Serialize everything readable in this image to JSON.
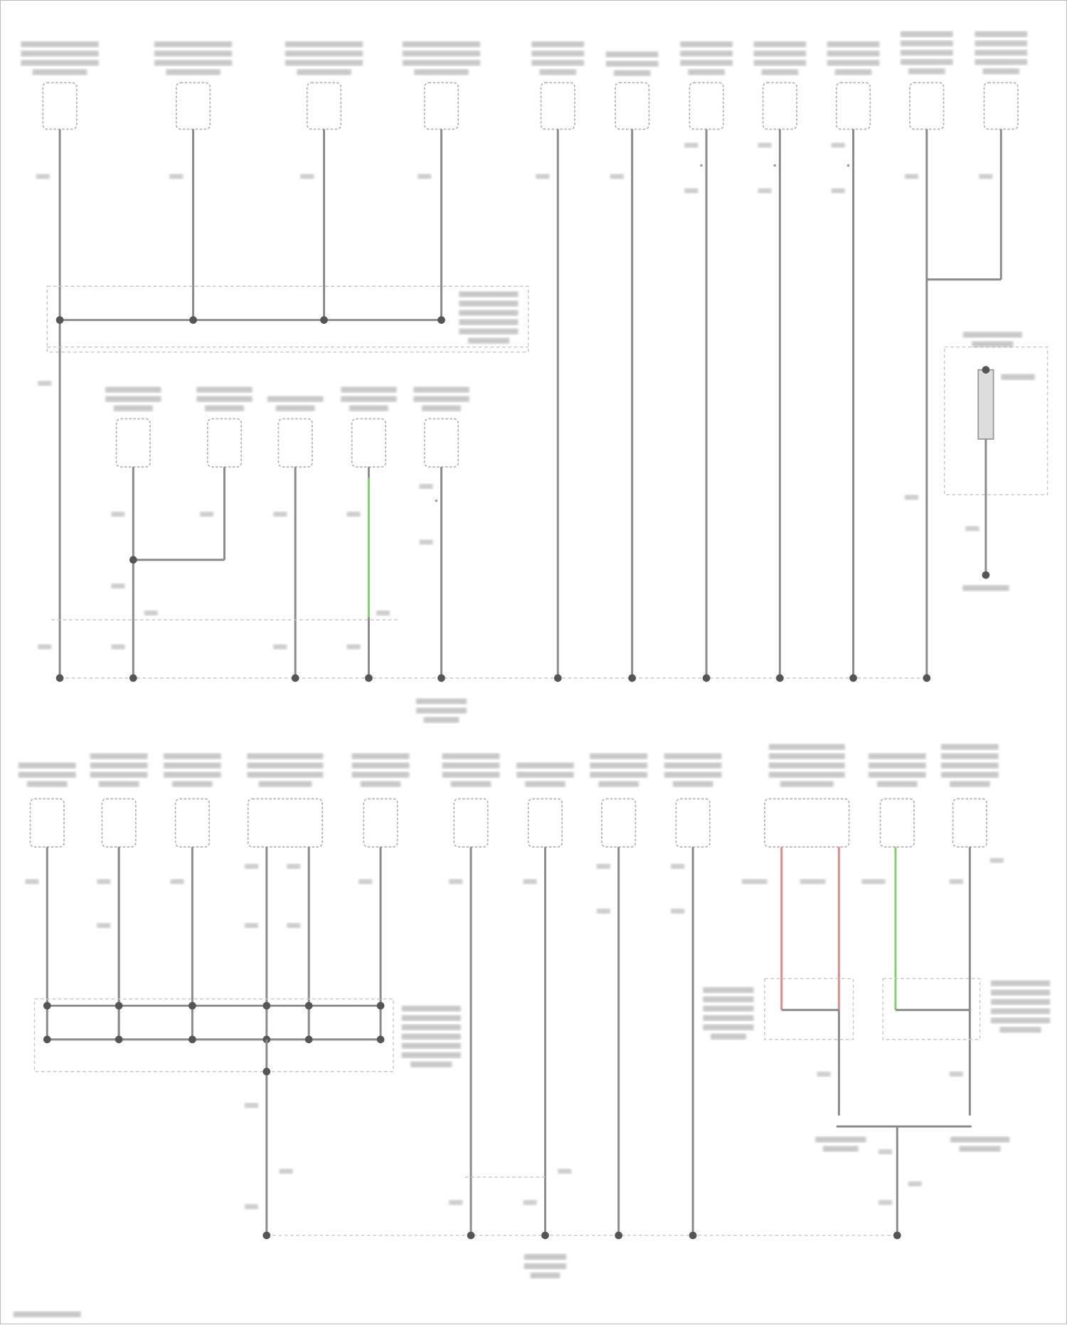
{
  "diagram": {
    "type": "wiring-diagram-ground-distribution",
    "colors": {
      "wire": "#8a8a8a",
      "wire_green": "#7cd36a",
      "wire_red": "#e08a8a",
      "component_outline": "#b5b5b5",
      "label_text": "#9a9a9a",
      "ground_dot": "#555555"
    },
    "note": ""
  }
}
